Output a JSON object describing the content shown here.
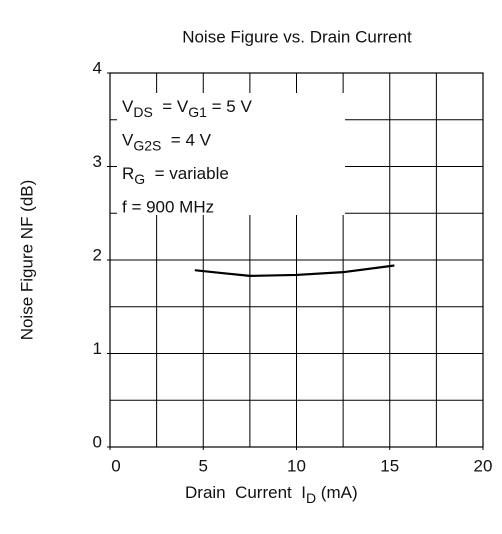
{
  "chart_data": {
    "type": "line",
    "title": "Noise Figure vs. Drain  Current",
    "ylabel": "Noise Figure  NF  (dB)",
    "xlabel": [
      {
        "text": "Drain  Current  I"
      },
      {
        "text": "D",
        "sub": true
      },
      {
        "text": " (mA)"
      }
    ],
    "annotations": [
      [
        {
          "text": "V"
        },
        {
          "text": "DS",
          "sub": true
        },
        {
          "text": "  = V"
        },
        {
          "text": "G1",
          "sub": true
        },
        {
          "text": " = 5 V"
        }
      ],
      [
        {
          "text": "V"
        },
        {
          "text": "G2S",
          "sub": true
        },
        {
          "text": "  = 4 V"
        }
      ],
      [
        {
          "text": "R"
        },
        {
          "text": "G",
          "sub": true
        },
        {
          "text": "  = variable"
        }
      ],
      [
        {
          "text": "f = 900 MHz"
        }
      ]
    ],
    "x": [
      4.6,
      6,
      7.5,
      10,
      12.5,
      15.2
    ],
    "values": [
      1.89,
      1.86,
      1.83,
      1.84,
      1.87,
      1.94
    ],
    "color": "#000000",
    "xlim": [
      0,
      20
    ],
    "ylim": [
      0,
      4
    ],
    "xticks": [
      0,
      5,
      10,
      15,
      20
    ],
    "yticks": [
      0,
      1,
      2,
      3,
      4
    ],
    "xgrid": [
      2.5,
      5,
      7.5,
      10,
      12.5,
      15,
      17.5
    ],
    "ygrid": [
      0.5,
      1,
      1.5,
      2,
      2.5,
      3,
      3.5
    ],
    "grid": true
  }
}
